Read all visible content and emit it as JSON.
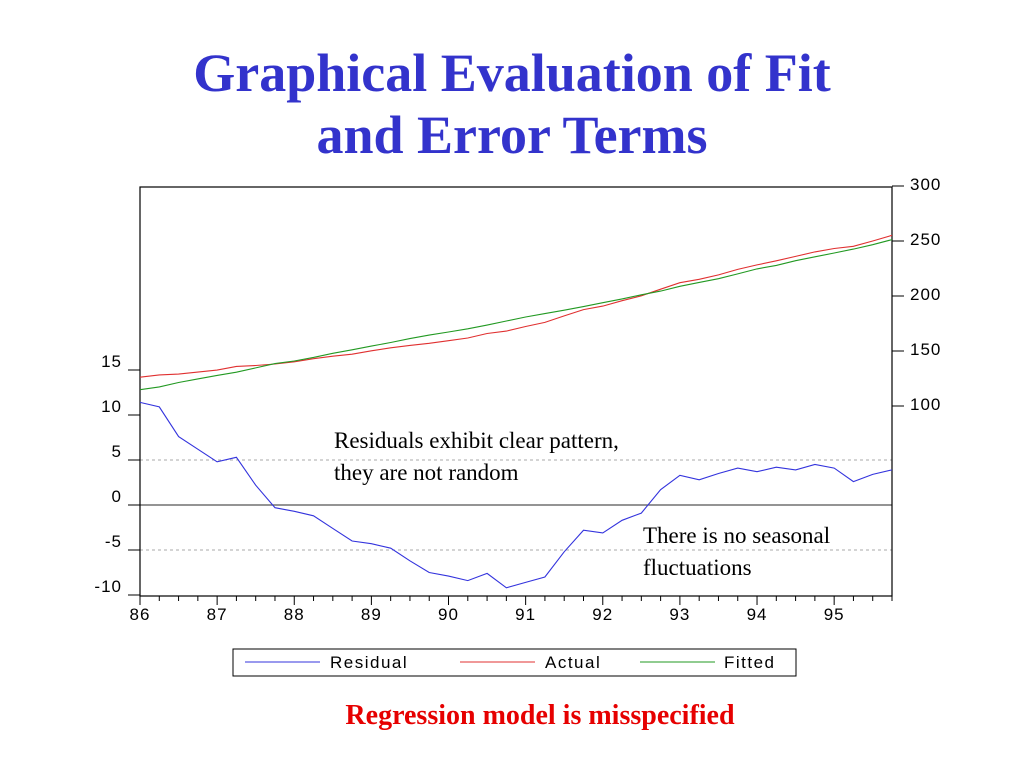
{
  "slide": {
    "title_line1": "Graphical Evaluation of Fit",
    "title_line2": "and Error Terms",
    "annotation_residuals_line1": "Residuals exhibit clear pattern,",
    "annotation_residuals_line2": "they are not random",
    "annotation_seasonal_line1": "There is no seasonal",
    "annotation_seasonal_line2": "fluctuations",
    "conclusion": "Regression model is misspecified",
    "colors": {
      "title": "#3333cc",
      "conclusion": "#e60000"
    }
  },
  "chart_data": {
    "type": "line",
    "title": "",
    "x": [
      86.0,
      86.25,
      86.5,
      86.75,
      87.0,
      87.25,
      87.5,
      87.75,
      88.0,
      88.25,
      88.5,
      88.75,
      89.0,
      89.25,
      89.5,
      89.75,
      90.0,
      90.25,
      90.5,
      90.75,
      91.0,
      91.25,
      91.5,
      91.75,
      92.0,
      92.25,
      92.5,
      92.75,
      93.0,
      93.25,
      93.5,
      93.75,
      94.0,
      94.25,
      94.5,
      94.75,
      95.0,
      95.25,
      95.5,
      95.75
    ],
    "x_ticks": [
      "86",
      "87",
      "88",
      "89",
      "90",
      "91",
      "92",
      "93",
      "94",
      "95"
    ],
    "xlim": [
      86,
      95.75
    ],
    "left_axis": {
      "ticks": [
        "15",
        "10",
        "5",
        "0",
        "-5",
        "-10"
      ],
      "range": [
        -10,
        15
      ]
    },
    "right_axis": {
      "ticks": [
        "300",
        "250",
        "200",
        "150",
        "100"
      ],
      "range": [
        100,
        300
      ]
    },
    "gridlines": [
      5,
      0,
      -5
    ],
    "legend_position": "bottom",
    "series": [
      {
        "name": "Residual",
        "axis": "left",
        "color": "#3333dd",
        "values": [
          11.4,
          10.9,
          7.6,
          6.2,
          4.8,
          5.3,
          2.2,
          -0.3,
          -0.7,
          -1.2,
          -2.6,
          -4.0,
          -4.3,
          -4.8,
          -6.2,
          -7.5,
          -7.9,
          -8.4,
          -7.6,
          -9.2,
          -8.6,
          -8.0,
          -5.2,
          -2.8,
          -3.1,
          -1.7,
          -0.9,
          1.7,
          3.3,
          2.8,
          3.5,
          4.1,
          3.7,
          4.2,
          3.9,
          4.5,
          4.1,
          2.6,
          3.4,
          3.9
        ]
      },
      {
        "name": "Actual",
        "axis": "right",
        "color": "#e03030",
        "values": [
          126.2,
          128.3,
          129.0,
          130.8,
          132.6,
          136.0,
          136.8,
          138.2,
          140.2,
          143.0,
          145.3,
          147.1,
          150.2,
          152.9,
          155.1,
          157.0,
          159.4,
          161.8,
          165.9,
          168.1,
          172.3,
          176.0,
          181.9,
          187.6,
          190.8,
          195.7,
          200.2,
          206.2,
          212.1,
          215.2,
          219.2,
          224.2,
          228.3,
          232.0,
          236.0,
          240.1,
          243.2,
          245.2,
          250.0,
          255.2
        ]
      },
      {
        "name": "Fitted",
        "axis": "right",
        "color": "#229922",
        "values": [
          114.8,
          117.4,
          121.4,
          124.6,
          127.8,
          130.7,
          134.6,
          138.5,
          140.9,
          144.2,
          147.9,
          151.1,
          154.5,
          157.7,
          161.3,
          164.5,
          167.3,
          170.2,
          173.5,
          177.3,
          180.9,
          184.0,
          187.1,
          190.4,
          193.9,
          197.4,
          201.1,
          204.5,
          208.8,
          212.4,
          215.7,
          220.1,
          224.6,
          227.8,
          232.1,
          235.6,
          239.1,
          242.6,
          246.6,
          251.3
        ]
      }
    ]
  }
}
